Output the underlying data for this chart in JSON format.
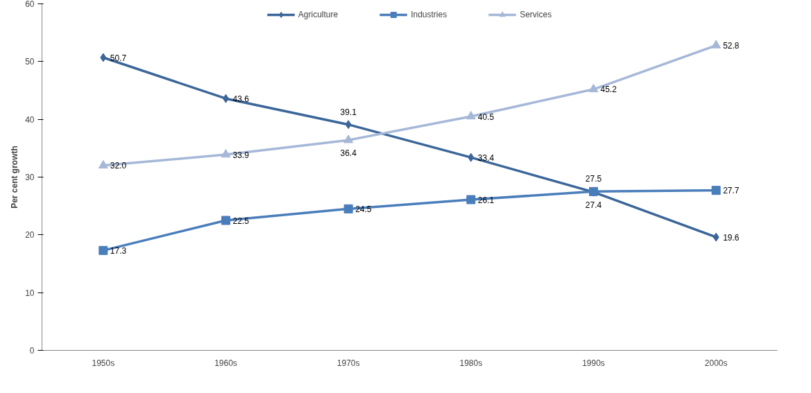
{
  "chart_data": {
    "type": "line",
    "ylabel": "Per cent growth",
    "categories": [
      "1950s",
      "1960s",
      "1970s",
      "1980s",
      "1990s",
      "2000s"
    ],
    "series": [
      {
        "name": "Agriculture",
        "color": "#3b6699",
        "marker": "diamond",
        "values": [
          50.7,
          43.6,
          39.1,
          33.4,
          27.4,
          19.6
        ],
        "value_labels": [
          "50.7",
          "43.6",
          "39.1",
          "33.4",
          "27.4",
          "19.6"
        ]
      },
      {
        "name": "Industries",
        "color": "#4a7ebb",
        "marker": "square",
        "values": [
          17.3,
          22.5,
          24.5,
          26.1,
          27.5,
          27.7
        ],
        "value_labels": [
          "17.3",
          "22.5",
          "24.5",
          "26.1",
          "27.5",
          "27.7"
        ]
      },
      {
        "name": "Services",
        "color": "#a6b8d8",
        "marker": "triangle",
        "values": [
          32.0,
          33.9,
          36.4,
          40.5,
          45.2,
          52.8
        ],
        "value_labels": [
          "32.0",
          "33.9",
          "36.4",
          "40.5",
          "45.2",
          "52.8"
        ]
      }
    ],
    "ylim": [
      0,
      60
    ],
    "yticks": [
      0,
      10,
      20,
      30,
      40,
      50,
      60
    ],
    "grid": false,
    "legend": "top",
    "line_style": "solid"
  }
}
